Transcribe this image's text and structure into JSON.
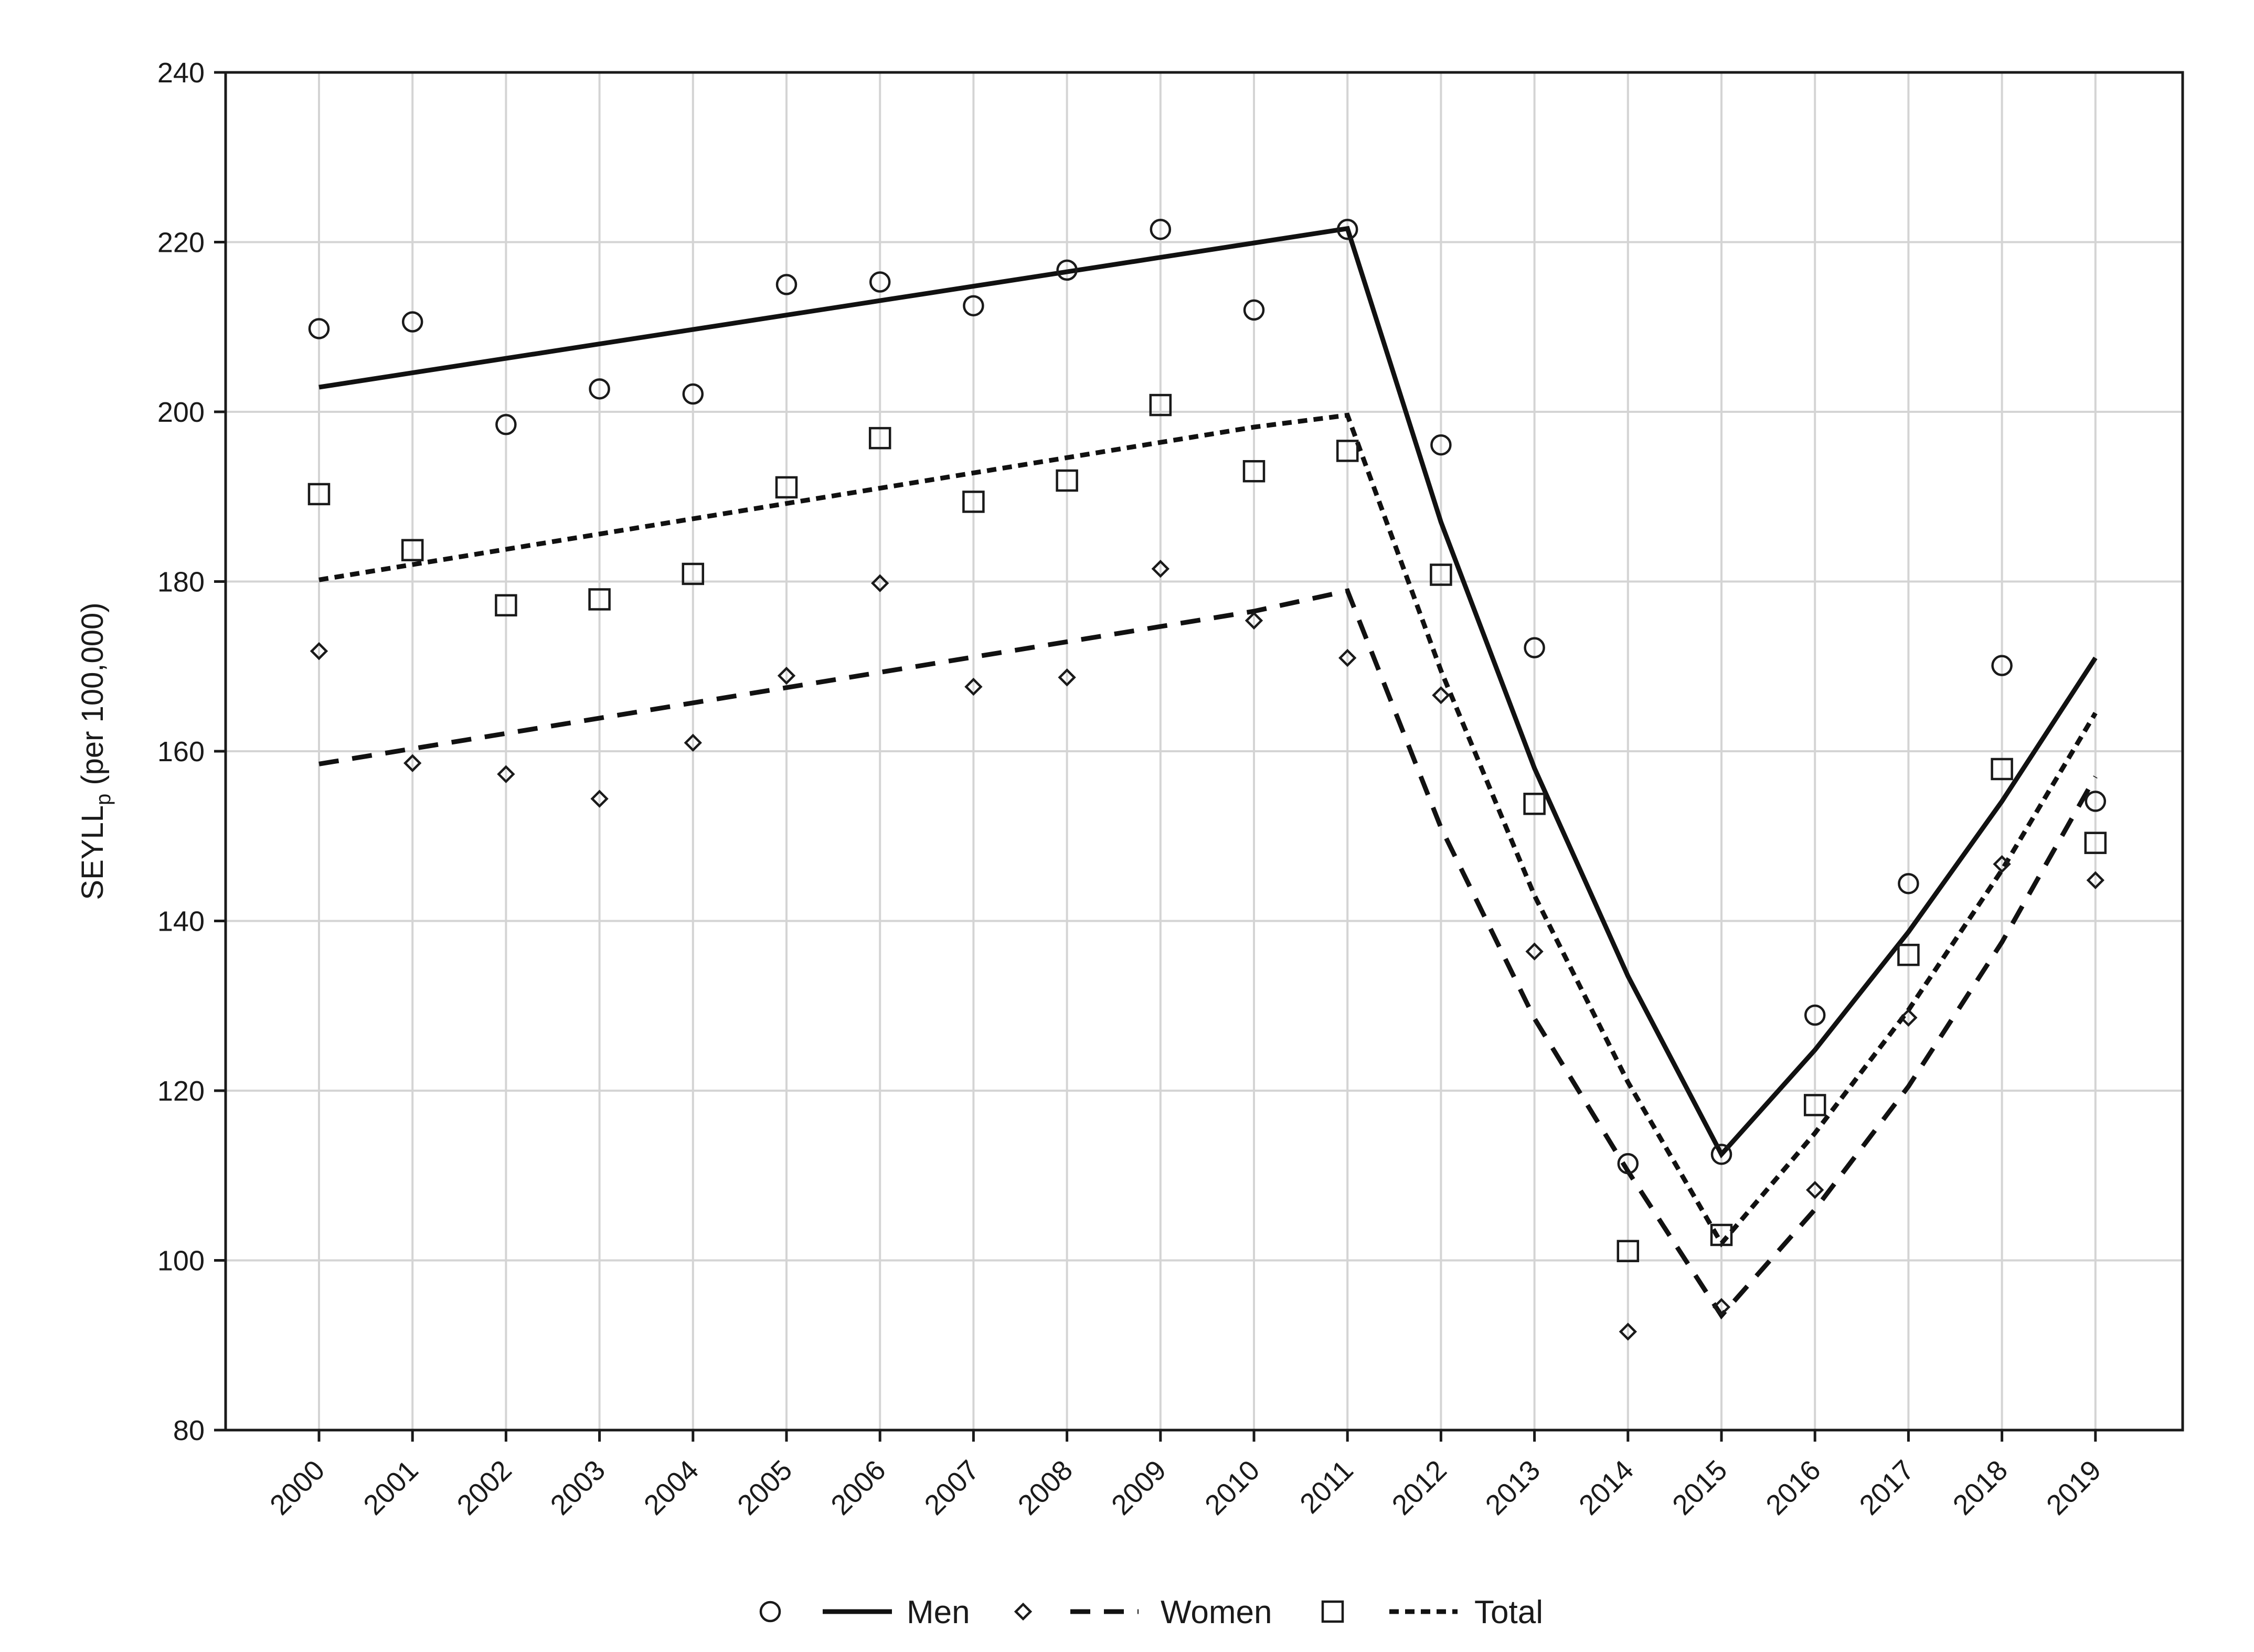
{
  "chart_data": {
    "type": "line",
    "ylabel": {
      "main": "SEYLL",
      "sub": "p",
      "rest": " (per 100,000)"
    },
    "xlabel": "",
    "ylim": [
      80,
      240
    ],
    "yticks": [
      80,
      100,
      120,
      140,
      160,
      180,
      200,
      220,
      240
    ],
    "grid": true,
    "legend_placement": "bottom-center",
    "categories": [
      "2000",
      "2001",
      "2002",
      "2003",
      "2004",
      "2005",
      "2006",
      "2007",
      "2008",
      "2009",
      "2010",
      "2011",
      "2012",
      "2013",
      "2014",
      "2015",
      "2016",
      "2017",
      "2018",
      "2019"
    ],
    "series": [
      {
        "name": "Men",
        "marker": "circle",
        "line_style": "solid",
        "observed": [
          209.8,
          210.6,
          198.5,
          202.7,
          202.1,
          215.0,
          215.3,
          212.5,
          216.7,
          221.5,
          212.0,
          221.5,
          196.1,
          172.2,
          111.4,
          112.5,
          128.9,
          144.4,
          170.1,
          154.1
        ],
        "fit": [
          202.9,
          204.6,
          206.3,
          208.0,
          209.7,
          211.4,
          213.1,
          214.8,
          216.5,
          218.2,
          219.9,
          221.6,
          187.0,
          158.0,
          133.5,
          112.5,
          124.8,
          138.7,
          154.1,
          171.0
        ]
      },
      {
        "name": "Women",
        "marker": "diamond",
        "line_style": "dashed",
        "observed": [
          171.8,
          158.6,
          157.3,
          154.4,
          161.0,
          168.9,
          179.8,
          167.6,
          168.7,
          181.5,
          175.4,
          171.0,
          166.6,
          136.4,
          91.6,
          94.5,
          108.3,
          128.6,
          146.7,
          144.8
        ],
        "fit": [
          158.5,
          160.3,
          162.1,
          163.9,
          165.7,
          167.5,
          169.3,
          171.1,
          172.9,
          174.7,
          176.5,
          178.9,
          151.0,
          128.5,
          110.5,
          93.5,
          106.0,
          120.5,
          137.5,
          157.0
        ]
      },
      {
        "name": "Total",
        "marker": "square",
        "line_style": "dotted",
        "observed": [
          190.3,
          183.7,
          177.2,
          177.9,
          180.9,
          191.1,
          196.9,
          189.4,
          191.9,
          200.8,
          193.0,
          195.4,
          180.8,
          153.8,
          101.1,
          103.0,
          118.3,
          136.0,
          157.9,
          149.2
        ],
        "fit": [
          180.2,
          182.0,
          183.8,
          185.6,
          187.4,
          189.2,
          191.0,
          192.8,
          194.6,
          196.4,
          198.2,
          199.6,
          169.5,
          143.0,
          121.0,
          102.0,
          115.0,
          129.5,
          146.0,
          164.5
        ]
      }
    ]
  }
}
